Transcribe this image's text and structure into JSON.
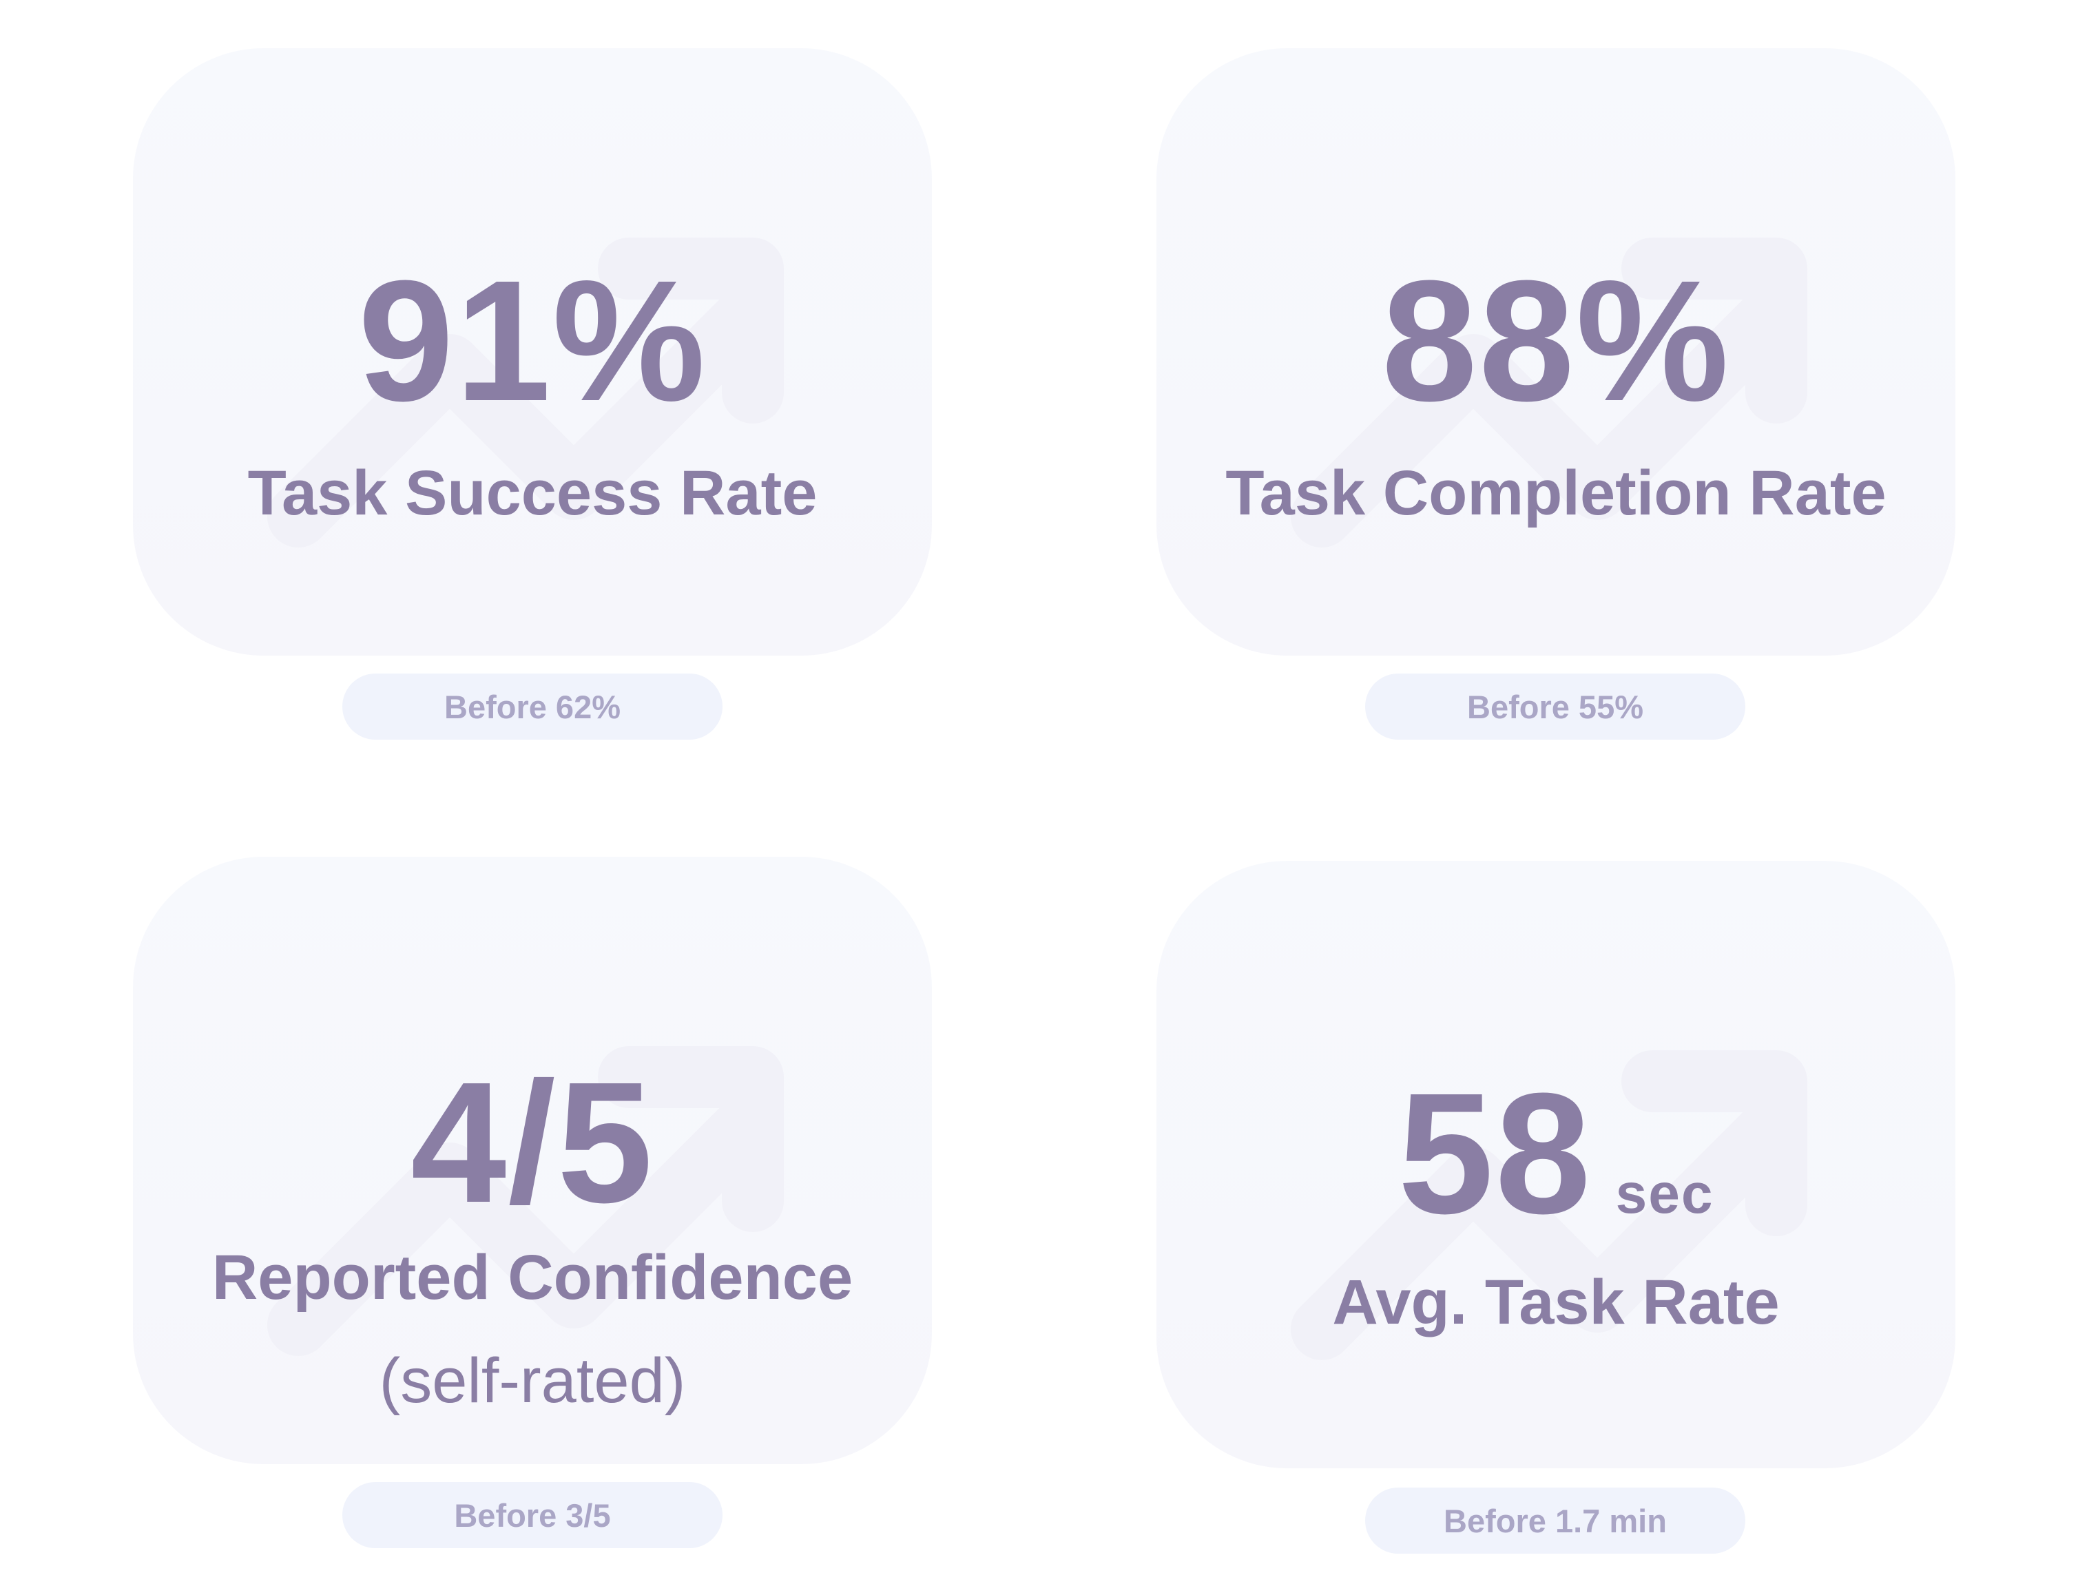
{
  "colors": {
    "background": "#ffffff",
    "card": "#f7f8fc",
    "text": "#8a7ea4",
    "pill_background": "#f0f3fc",
    "pill_text": "#aaa6c6",
    "trend_icon": "#f1f1f8"
  },
  "cards": [
    {
      "value": "91%",
      "unit": "",
      "label": "Task Success Rate",
      "sublabel": "",
      "before": "Before 62%",
      "icon": "trend-up-arrow-icon"
    },
    {
      "value": "88%",
      "unit": "",
      "label": "Task Completion Rate",
      "sublabel": "",
      "before": "Before 55%",
      "icon": "trend-up-arrow-icon"
    },
    {
      "value": "4/5",
      "unit": "",
      "label": "Reported Confidence",
      "sublabel": "(self-rated)",
      "before": "Before 3/5",
      "icon": "trend-up-arrow-icon"
    },
    {
      "value": "58",
      "unit": "sec",
      "label": "Avg. Task Rate",
      "sublabel": "",
      "before": "Before 1.7 min",
      "icon": "trend-up-arrow-icon"
    }
  ]
}
